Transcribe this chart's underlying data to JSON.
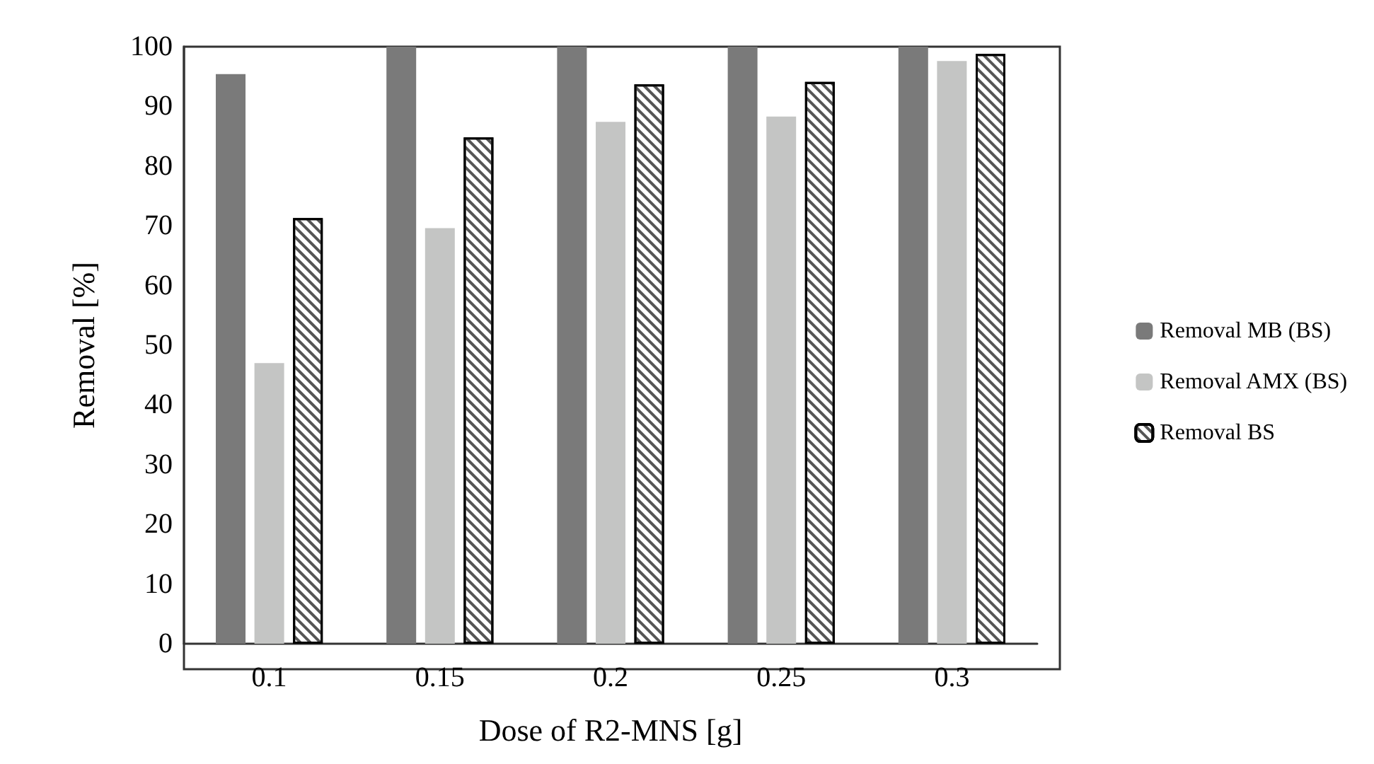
{
  "chart_data": {
    "type": "bar",
    "xlabel": "Dose of R2-MNS [g]",
    "ylabel": "Removal [%]",
    "categories": [
      "0.1",
      "0.15",
      "0.2",
      "0.25",
      "0.3"
    ],
    "series": [
      {
        "name": "Removal MB (BS)",
        "color": "#7a7a7a",
        "values": [
          95.4,
          100,
          100,
          100,
          100
        ]
      },
      {
        "name": "Removal AMX (BS)",
        "color": "#c4c5c4",
        "values": [
          47,
          69.6,
          87.4,
          88.3,
          97.6
        ]
      },
      {
        "name": "Removal BS",
        "color": "#ffffff",
        "values": [
          71.3,
          84.8,
          93.7,
          94.1,
          98.8
        ]
      }
    ],
    "ylim": [
      0,
      100
    ],
    "yticks": [
      0,
      10,
      20,
      30,
      40,
      50,
      60,
      70,
      80,
      90,
      100
    ],
    "grid": false,
    "legend": "right"
  }
}
